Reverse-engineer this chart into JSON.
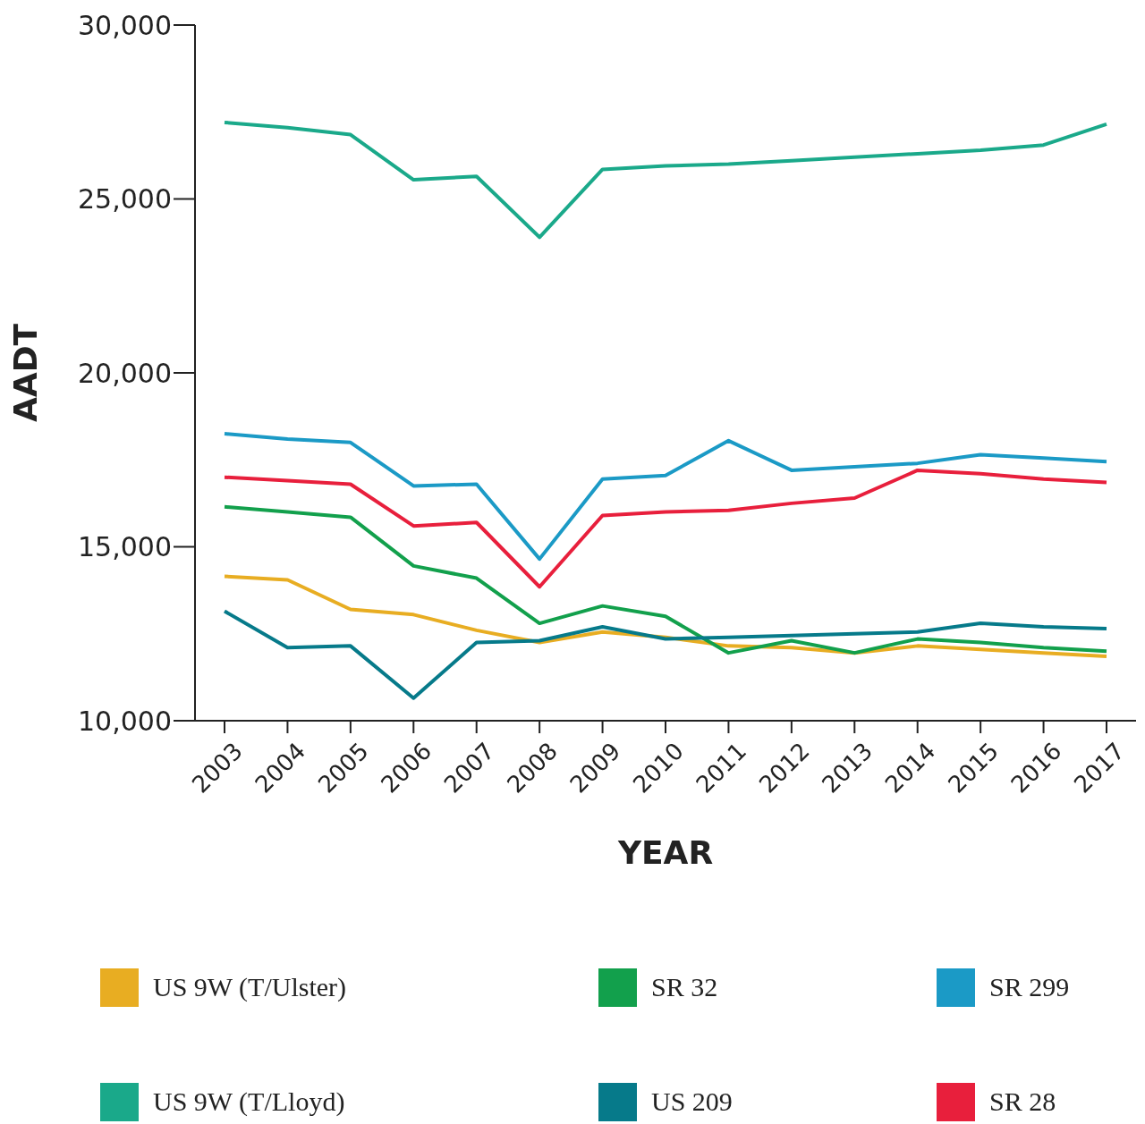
{
  "chart_data": {
    "type": "line",
    "xlabel": "YEAR",
    "ylabel": "AADT",
    "categories": [
      "2003",
      "2004",
      "2005",
      "2006",
      "2007",
      "2008",
      "2009",
      "2010",
      "2011",
      "2012",
      "2013",
      "2014",
      "2015",
      "2016",
      "2017"
    ],
    "series": [
      {
        "name": "US 9W (T/Ulster)",
        "color": "#e8ad22",
        "values": [
          14150,
          14050,
          13200,
          13050,
          12600,
          12250,
          12550,
          12400,
          12150,
          12100,
          11950,
          12150,
          12050,
          11950,
          11850
        ]
      },
      {
        "name": "SR 32",
        "color": "#12a04c",
        "values": [
          16150,
          16000,
          15850,
          14450,
          14100,
          12800,
          13300,
          13000,
          11950,
          12300,
          11950,
          12350,
          12250,
          12100,
          12000
        ]
      },
      {
        "name": "SR 299",
        "color": "#1b9ac6",
        "values": [
          18250,
          18100,
          18000,
          16750,
          16800,
          14650,
          16950,
          17050,
          18050,
          17200,
          17300,
          17400,
          17650,
          17550,
          17450
        ]
      },
      {
        "name": "US 9W (T/Lloyd)",
        "color": "#1aa98a",
        "values": [
          27200,
          27050,
          26850,
          25550,
          25650,
          23900,
          25850,
          25950,
          26000,
          26100,
          26200,
          26300,
          26400,
          26550,
          27150
        ]
      },
      {
        "name": "US 209",
        "color": "#067a8a",
        "values": [
          13150,
          12100,
          12150,
          10650,
          12250,
          12300,
          12700,
          12350,
          12400,
          12450,
          12500,
          12550,
          12800,
          12700,
          12650
        ]
      },
      {
        "name": "SR 28",
        "color": "#e81f3c",
        "values": [
          17000,
          16900,
          16800,
          15600,
          15700,
          13850,
          15900,
          16000,
          16050,
          16250,
          16400,
          17200,
          17100,
          16950,
          16850
        ]
      }
    ],
    "ylim": [
      10000,
      30000
    ],
    "yticks": [
      {
        "value": 10000,
        "label": "10,000"
      },
      {
        "value": 15000,
        "label": "15,000"
      },
      {
        "value": 20000,
        "label": "20,000"
      },
      {
        "value": 25000,
        "label": "25,000"
      },
      {
        "value": 30000,
        "label": "30,000"
      }
    ],
    "grid": false,
    "legend": "bottom",
    "marker": "none",
    "line_style": "solid"
  }
}
